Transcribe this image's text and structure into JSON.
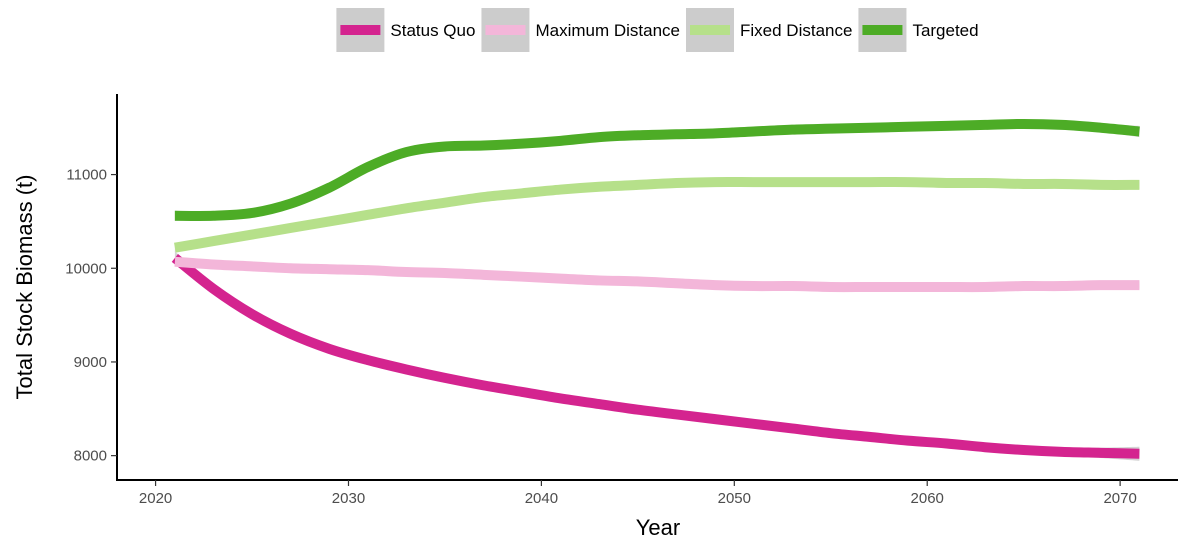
{
  "chart_data": {
    "type": "line",
    "xlabel": "Year",
    "ylabel": "Total Stock Biomass (t)",
    "xlim": [
      2018,
      2073
    ],
    "ylim": [
      7740,
      11860
    ],
    "x_ticks": [
      2020,
      2030,
      2040,
      2050,
      2060,
      2070
    ],
    "x_tick_labels": [
      "2020",
      "2030",
      "2040",
      "2050",
      "2060",
      "2070"
    ],
    "y_ticks": [
      8000,
      9000,
      10000,
      11000
    ],
    "y_tick_labels": [
      "8000",
      "9000",
      "10000",
      "11000"
    ],
    "grid": false,
    "legend_position": "top",
    "confidence_band": true,
    "band_color": "#cccccc",
    "x": [
      2021,
      2023,
      2025,
      2027,
      2029,
      2031,
      2033,
      2035,
      2037,
      2039,
      2041,
      2043,
      2045,
      2047,
      2049,
      2051,
      2053,
      2055,
      2057,
      2059,
      2061,
      2063,
      2065,
      2067,
      2069,
      2071
    ],
    "series": [
      {
        "name": "Status Quo",
        "color": "#d4248f",
        "values": [
          10110,
          9780,
          9510,
          9300,
          9140,
          9020,
          8920,
          8830,
          8750,
          8680,
          8610,
          8550,
          8490,
          8440,
          8390,
          8340,
          8290,
          8240,
          8200,
          8160,
          8130,
          8090,
          8060,
          8040,
          8030,
          8020
        ],
        "band_halfwidth": [
          70,
          30,
          25,
          25,
          25,
          25,
          25,
          25,
          25,
          25,
          25,
          25,
          25,
          25,
          25,
          25,
          25,
          25,
          25,
          25,
          25,
          30,
          35,
          40,
          55,
          75
        ]
      },
      {
        "name": "Maximum Distance",
        "color": "#f3b6d9",
        "values": [
          10070,
          10040,
          10020,
          10000,
          9990,
          9980,
          9960,
          9950,
          9930,
          9910,
          9890,
          9870,
          9860,
          9840,
          9820,
          9810,
          9810,
          9800,
          9800,
          9800,
          9800,
          9800,
          9810,
          9810,
          9820,
          9820
        ],
        "band_halfwidth": [
          45,
          25,
          20,
          20,
          20,
          20,
          20,
          20,
          20,
          20,
          20,
          20,
          20,
          20,
          20,
          20,
          20,
          20,
          20,
          20,
          20,
          20,
          20,
          25,
          30,
          40
        ]
      },
      {
        "name": "Fixed Distance",
        "color": "#b6e08a",
        "values": [
          10220,
          10290,
          10360,
          10430,
          10500,
          10570,
          10640,
          10700,
          10760,
          10800,
          10840,
          10870,
          10890,
          10910,
          10920,
          10920,
          10920,
          10920,
          10920,
          10920,
          10910,
          10910,
          10900,
          10900,
          10890,
          10890
        ],
        "band_halfwidth": [
          45,
          25,
          20,
          20,
          20,
          20,
          20,
          20,
          20,
          20,
          20,
          20,
          20,
          20,
          20,
          20,
          20,
          20,
          20,
          20,
          20,
          20,
          20,
          25,
          30,
          45
        ]
      },
      {
        "name": "Targeted",
        "color": "#4dac26",
        "values": [
          10560,
          10560,
          10590,
          10690,
          10860,
          11080,
          11240,
          11300,
          11310,
          11330,
          11360,
          11400,
          11420,
          11430,
          11440,
          11460,
          11480,
          11490,
          11500,
          11510,
          11520,
          11530,
          11540,
          11530,
          11500,
          11460
        ],
        "band_halfwidth": [
          55,
          30,
          25,
          25,
          25,
          25,
          25,
          25,
          25,
          25,
          25,
          25,
          25,
          25,
          25,
          25,
          25,
          25,
          25,
          25,
          25,
          25,
          25,
          30,
          40,
          60
        ]
      }
    ]
  }
}
